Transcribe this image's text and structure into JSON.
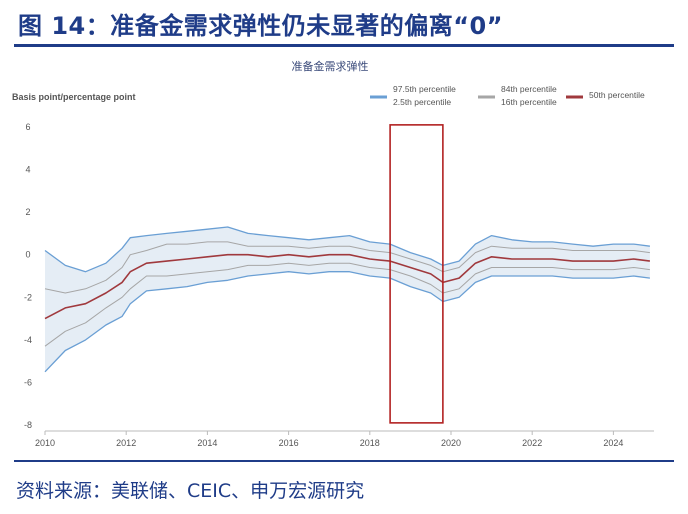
{
  "header": {
    "title": "图 14：准备金需求弹性仍未显著的偏离“0”"
  },
  "footer": {
    "source": "资料来源：美联储、CEIC、申万宏源研究"
  },
  "chart_data": {
    "type": "line",
    "title": "准备金需求弹性",
    "ylabel": "Basis point/percentage point",
    "xlim": [
      2010,
      2025
    ],
    "ylim": [
      -8,
      6
    ],
    "x_ticks": [
      2010,
      2012,
      2014,
      2016,
      2018,
      2020,
      2022,
      2024
    ],
    "y_ticks": [
      6,
      4,
      2,
      0,
      -2,
      -4,
      -6,
      -8
    ],
    "legend": [
      {
        "label": "97.5th percentile",
        "label2": "2.5th percentile",
        "color": "#6a9fd4"
      },
      {
        "label": "84th percentile",
        "label2": "16th percentile",
        "color": "#a6a6a6"
      },
      {
        "label": "50th percentile",
        "color": "#a0393d"
      }
    ],
    "highlight_box": {
      "x": [
        2018.5,
        2019.8
      ],
      "y": [
        -7.9,
        6.1
      ],
      "color": "#b22222"
    },
    "x": [
      2010.0,
      2010.5,
      2011.0,
      2011.5,
      2011.9,
      2012.1,
      2012.5,
      2013.0,
      2013.5,
      2014.0,
      2014.5,
      2015.0,
      2015.5,
      2016.0,
      2016.5,
      2017.0,
      2017.5,
      2018.0,
      2018.5,
      2019.0,
      2019.5,
      2019.8,
      2020.2,
      2020.6,
      2021.0,
      2021.5,
      2022.0,
      2022.5,
      2023.0,
      2023.5,
      2024.0,
      2024.5,
      2024.9
    ],
    "series": [
      {
        "name": "97.5th percentile",
        "values": [
          0.2,
          -0.5,
          -0.8,
          -0.4,
          0.3,
          0.8,
          0.9,
          1.0,
          1.1,
          1.2,
          1.3,
          1.0,
          0.9,
          0.8,
          0.7,
          0.8,
          0.9,
          0.6,
          0.5,
          0.1,
          -0.2,
          -0.5,
          -0.3,
          0.5,
          0.9,
          0.7,
          0.6,
          0.6,
          0.5,
          0.4,
          0.5,
          0.5,
          0.4
        ]
      },
      {
        "name": "84th percentile",
        "values": [
          -1.6,
          -1.8,
          -1.6,
          -1.2,
          -0.6,
          0.0,
          0.2,
          0.5,
          0.5,
          0.6,
          0.6,
          0.4,
          0.4,
          0.4,
          0.3,
          0.4,
          0.4,
          0.2,
          0.1,
          -0.2,
          -0.5,
          -0.8,
          -0.6,
          0.1,
          0.4,
          0.3,
          0.3,
          0.3,
          0.2,
          0.2,
          0.2,
          0.2,
          0.1
        ]
      },
      {
        "name": "50th percentile",
        "values": [
          -3.0,
          -2.5,
          -2.3,
          -1.8,
          -1.3,
          -0.8,
          -0.4,
          -0.3,
          -0.2,
          -0.1,
          0.0,
          0.0,
          -0.1,
          0.0,
          -0.1,
          0.0,
          0.0,
          -0.2,
          -0.3,
          -0.6,
          -0.9,
          -1.3,
          -1.1,
          -0.4,
          -0.1,
          -0.2,
          -0.2,
          -0.2,
          -0.3,
          -0.3,
          -0.3,
          -0.2,
          -0.3
        ]
      },
      {
        "name": "16th percentile",
        "values": [
          -4.3,
          -3.6,
          -3.2,
          -2.5,
          -2.0,
          -1.6,
          -1.0,
          -1.0,
          -0.9,
          -0.8,
          -0.7,
          -0.5,
          -0.5,
          -0.4,
          -0.5,
          -0.4,
          -0.4,
          -0.6,
          -0.7,
          -1.0,
          -1.4,
          -1.8,
          -1.6,
          -0.9,
          -0.6,
          -0.6,
          -0.6,
          -0.6,
          -0.7,
          -0.7,
          -0.7,
          -0.6,
          -0.7
        ]
      },
      {
        "name": "2.5th percentile",
        "values": [
          -5.5,
          -4.5,
          -4.0,
          -3.3,
          -2.9,
          -2.3,
          -1.7,
          -1.6,
          -1.5,
          -1.3,
          -1.2,
          -1.0,
          -0.9,
          -0.8,
          -0.9,
          -0.8,
          -0.8,
          -1.0,
          -1.1,
          -1.5,
          -1.8,
          -2.2,
          -2.0,
          -1.3,
          -1.0,
          -1.0,
          -1.0,
          -1.0,
          -1.1,
          -1.1,
          -1.1,
          -1.0,
          -1.1
        ]
      }
    ]
  }
}
